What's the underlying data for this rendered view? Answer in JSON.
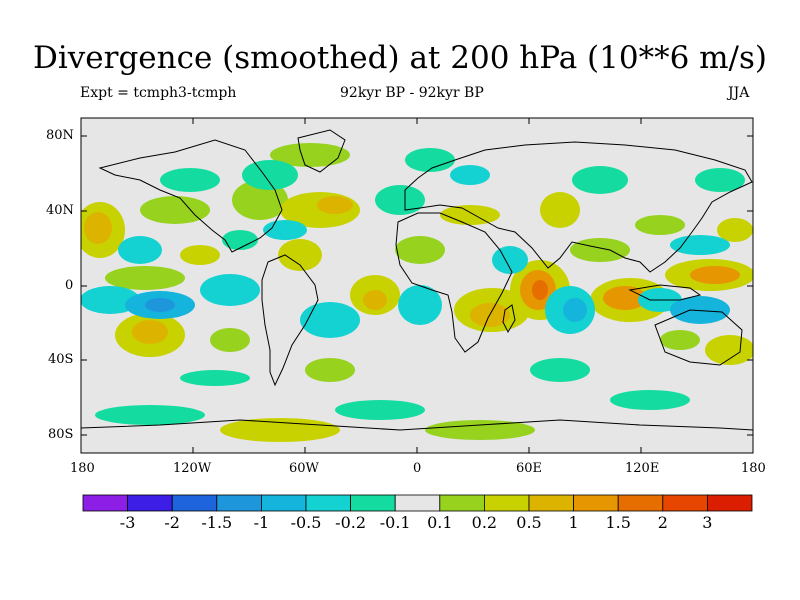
{
  "header": {
    "title": "Divergence (smoothed) at 200 hPa (10**6 m/s)",
    "expt": "Expt = tcmph3-tcmph",
    "period": "92kyr BP - 92kyr BP",
    "season": "JJA"
  },
  "map": {
    "lat_labels": [
      "80N",
      "40N",
      "0",
      "40S",
      "80S"
    ],
    "lon_labels": [
      "180",
      "120W",
      "60W",
      "0",
      "60E",
      "120E",
      "180"
    ],
    "background_color": "#e6e6e6"
  },
  "colorbar": {
    "colors": [
      "#8c1ee6",
      "#3c1ee6",
      "#1e64dc",
      "#1e96dc",
      "#14b4dc",
      "#14d2d2",
      "#14dca0",
      "#e6e6e6",
      "#96d21e",
      "#c8d200",
      "#dcb400",
      "#e69600",
      "#e66e00",
      "#e64600",
      "#dc1e00"
    ],
    "labels": [
      "-3",
      "-2",
      "-1.5",
      "-1",
      "-0.5",
      "-0.2",
      "-0.1",
      "0.1",
      "0.2",
      "0.5",
      "1",
      "1.5",
      "2",
      "3"
    ]
  }
}
